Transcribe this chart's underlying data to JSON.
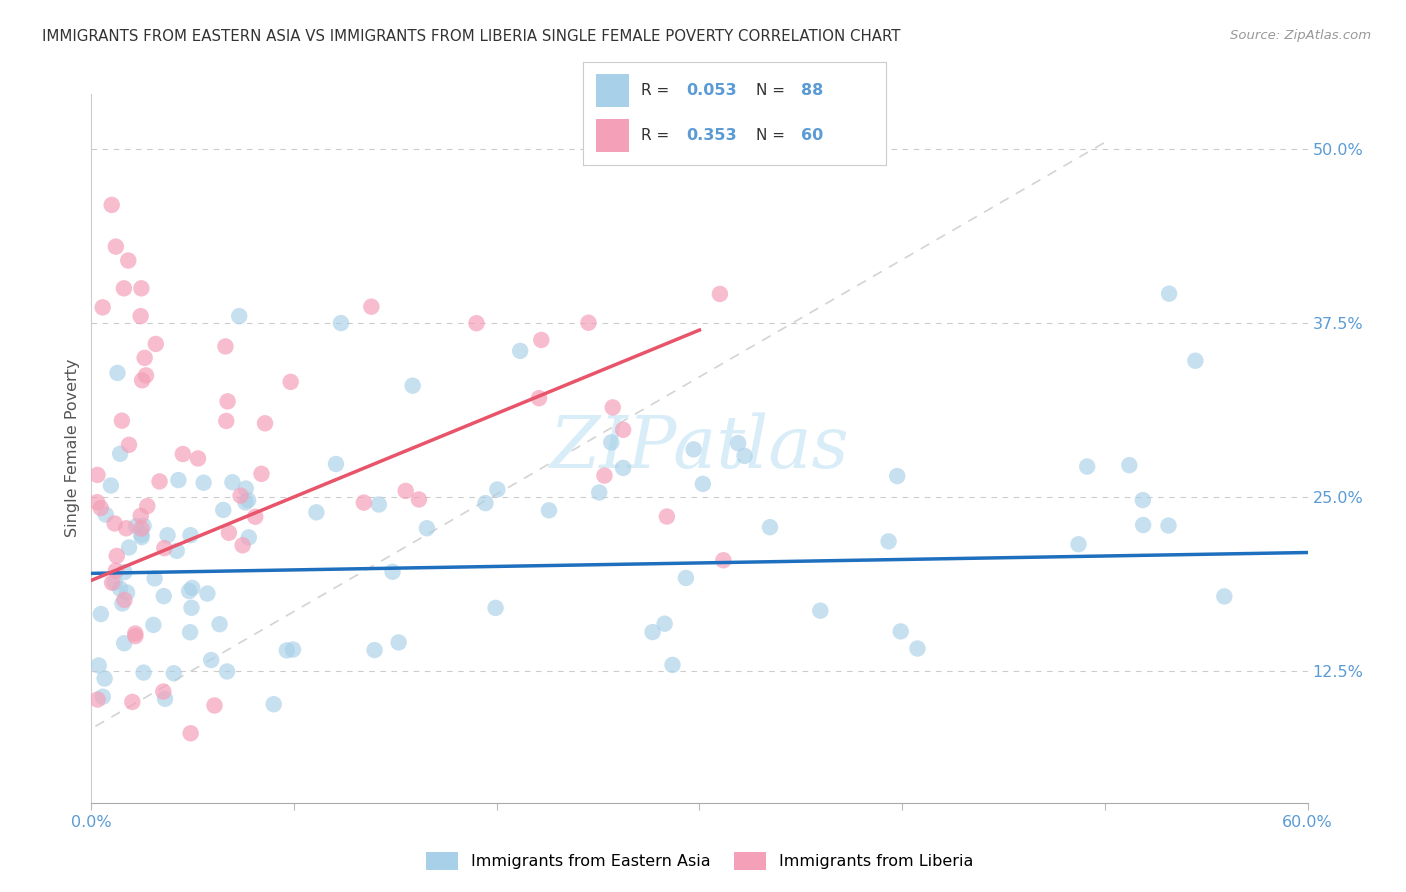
{
  "title": "IMMIGRANTS FROM EASTERN ASIA VS IMMIGRANTS FROM LIBERIA SINGLE FEMALE POVERTY CORRELATION CHART",
  "source": "Source: ZipAtlas.com",
  "ylabel": "Single Female Poverty",
  "yticks": [
    0.125,
    0.25,
    0.375,
    0.5
  ],
  "ytick_labels": [
    "12.5%",
    "25.0%",
    "37.5%",
    "50.0%"
  ],
  "xlim": [
    0.0,
    0.6
  ],
  "ylim": [
    0.03,
    0.54
  ],
  "series1_label": "Immigrants from Eastern Asia",
  "series2_label": "Immigrants from Liberia",
  "color_blue": "#a8d0e8",
  "color_pink": "#f4a0b8",
  "color_blue_line": "#1f6fbf",
  "color_pink_line": "#e8546a",
  "color_diag_line": "#cccccc",
  "watermark": "ZIPatlas",
  "watermark_color": "#d8edf8",
  "r1": 0.053,
  "n1": 88,
  "r2": 0.353,
  "n2": 60,
  "tick_color": "#5b9bd5",
  "title_color": "#333333",
  "source_color": "#999999",
  "ylabel_color": "#555555"
}
